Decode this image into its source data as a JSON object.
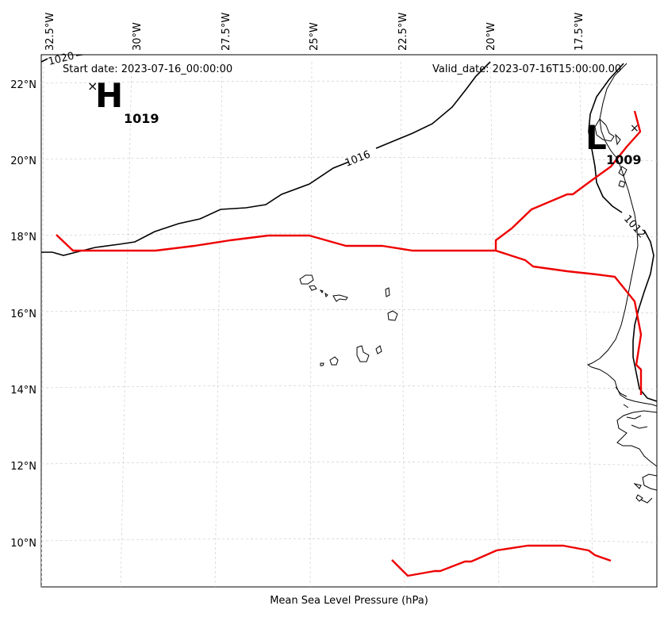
{
  "header": {
    "start_date": "Start date: 2023-07-16_00:00:00",
    "valid_date": "Valid_date: 2023-07-16T15:00:00.00"
  },
  "footer": {
    "xlabel": "Mean Sea Level Pressure (hPa)"
  },
  "axes": {
    "lon_ticks": [
      "32.5°W",
      "30°W",
      "27.5°W",
      "25°W",
      "22.5°W",
      "20°W",
      "17.5°W"
    ],
    "lat_ticks": [
      "22°N",
      "20°N",
      "18°N",
      "16°N",
      "14°N",
      "12°N",
      "10°N"
    ]
  },
  "pressure_centers": {
    "high": {
      "symbol": "H",
      "value": "1019"
    },
    "low": {
      "symbol": "L",
      "value": "1009"
    }
  },
  "isobars": {
    "labels": [
      "1020",
      "1016",
      "1012"
    ]
  },
  "colors": {
    "isobar": "#000000",
    "track": "#ee0000",
    "grid": "#cccccc",
    "coast": "#000000"
  }
}
